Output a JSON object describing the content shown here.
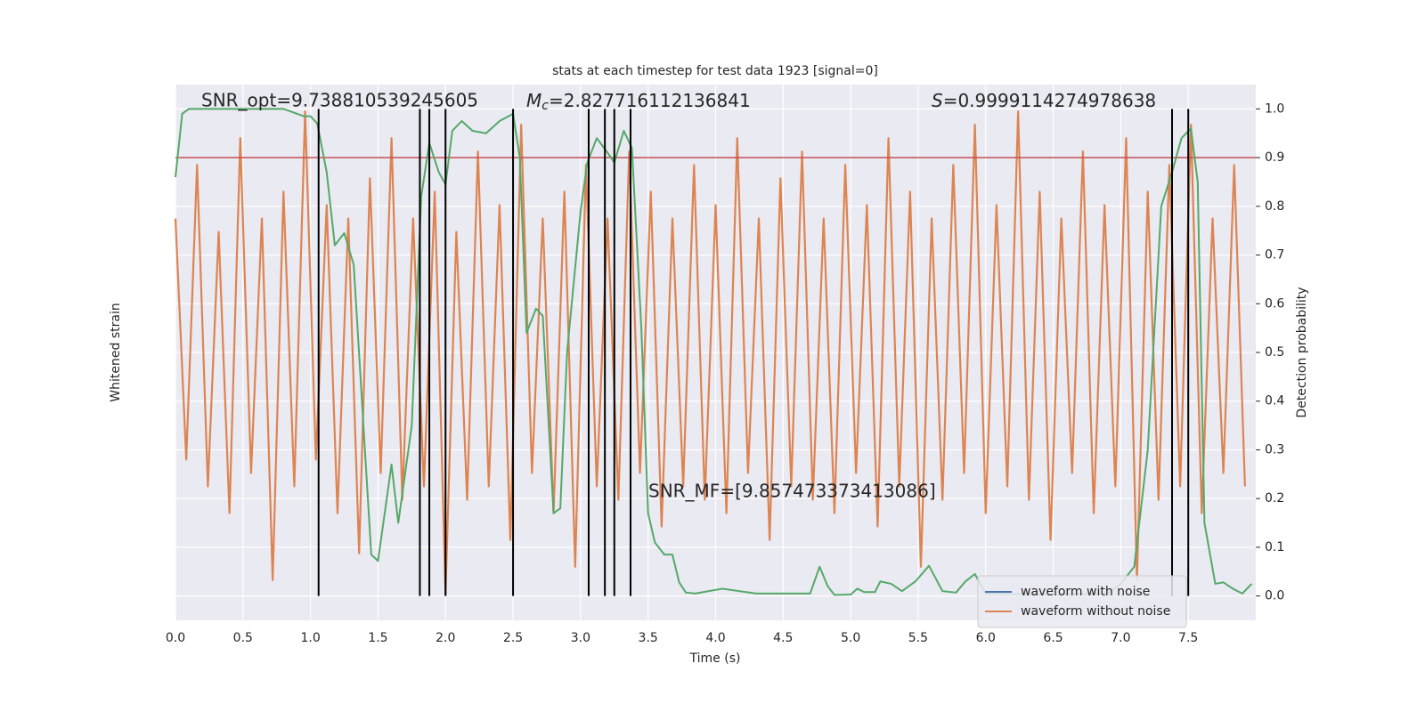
{
  "chart_data": {
    "type": "line",
    "title": "stats at each timestep for test data 1923 [signal=0]",
    "xlabel": "Time (s)",
    "ylabel": "Whitened strain",
    "y2label": "Detection probability",
    "xlim": [
      0,
      8.0
    ],
    "ylim": [
      -1,
      1
    ],
    "y2lim": [
      -0.05,
      1.05
    ],
    "xticks": [
      {
        "value": 0,
        "label": "0.0"
      },
      {
        "value": 0.5,
        "label": "0.5"
      },
      {
        "value": 1,
        "label": "1.0"
      },
      {
        "value": 1.5,
        "label": "1.5"
      },
      {
        "value": 2,
        "label": "2.0"
      },
      {
        "value": 2.5,
        "label": "2.5"
      },
      {
        "value": 3,
        "label": "3.0"
      },
      {
        "value": 3.5,
        "label": "3.5"
      },
      {
        "value": 4,
        "label": "4.0"
      },
      {
        "value": 4.5,
        "label": "4.5"
      },
      {
        "value": 5,
        "label": "5.0"
      },
      {
        "value": 5.5,
        "label": "5.5"
      },
      {
        "value": 6,
        "label": "6.0"
      },
      {
        "value": 6.5,
        "label": "6.5"
      },
      {
        "value": 7,
        "label": "7.0"
      },
      {
        "value": 7.5,
        "label": "7.5"
      }
    ],
    "y2ticks": [
      {
        "value": 0,
        "label": "0.0"
      },
      0.1,
      0.2,
      0.3,
      0.4,
      0.5,
      0.6,
      0.7,
      0.8,
      0.9,
      {
        "value": 1,
        "label": "1.0"
      }
    ],
    "grid": true,
    "annotations": [
      {
        "text": "SNR_opt=9.738810539245605"
      },
      {
        "symbol": "M",
        "subscript": "c",
        "text": "=2.827716112136841"
      },
      {
        "symbol": "S",
        "text": "=0.9999114274978638"
      },
      {
        "text": "SNR_MF=[9.857473373413086]"
      }
    ],
    "legend": {
      "loc": "lower right",
      "entries": [
        {
          "name": "waveform with noise",
          "color": "#4c72b0"
        },
        {
          "name": "waveform without noise",
          "color": "#dd8452"
        }
      ]
    },
    "hline": {
      "value": 0.9,
      "color": "#c44e52"
    },
    "vlines": {
      "color": "#000000",
      "values": [
        1.06,
        1.81,
        1.88,
        2.0,
        2.5,
        3.06,
        3.18,
        3.25,
        3.37,
        7.38,
        7.5
      ]
    },
    "series": [
      {
        "name": "waveform without noise",
        "color": "#dd8452",
        "x": [
          0,
          0.08,
          0.16,
          0.24,
          0.32,
          0.4,
          0.48,
          0.56,
          0.64,
          0.72,
          0.8,
          0.88,
          0.96,
          1.04,
          1.12,
          1.2,
          1.28,
          1.36,
          1.44,
          1.52,
          1.6,
          1.68,
          1.76,
          1.84,
          1.92,
          2,
          2.08,
          2.16,
          2.24,
          2.32,
          2.4,
          2.48,
          2.56,
          2.64,
          2.72,
          2.8,
          2.88,
          2.96,
          3.04,
          3.12,
          3.2,
          3.28,
          3.36,
          3.44,
          3.52,
          3.6,
          3.68,
          3.76,
          3.84,
          3.92,
          4,
          4.08,
          4.16,
          4.24,
          4.32,
          4.4,
          4.48,
          4.56,
          4.64,
          4.72,
          4.8,
          4.88,
          4.96,
          5.04,
          5.12,
          5.2,
          5.28,
          5.36,
          5.44,
          5.52,
          5.6,
          5.68,
          5.76,
          5.84,
          5.92,
          6,
          6.08,
          6.16,
          6.24,
          6.32,
          6.4,
          6.48,
          6.56,
          6.64,
          6.72,
          6.8,
          6.88,
          6.96,
          7.04,
          7.12,
          7.2,
          7.28,
          7.36,
          7.44,
          7.52,
          7.6,
          7.68,
          7.76,
          7.84,
          7.92
        ],
        "values": [
          0.5,
          -0.4,
          0.7,
          -0.5,
          0.45,
          -0.6,
          0.8,
          -0.45,
          0.5,
          -0.85,
          0.6,
          -0.5,
          0.9,
          -0.4,
          0.55,
          -0.6,
          0.5,
          -0.75,
          0.65,
          -0.45,
          0.8,
          -0.55,
          0.5,
          -0.5,
          0.6,
          -0.9,
          0.45,
          -0.55,
          0.75,
          -0.5,
          0.55,
          -0.7,
          0.85,
          -0.45,
          0.5,
          -0.6,
          0.6,
          -0.8,
          0.7,
          -0.5,
          0.5,
          -0.55,
          0.75,
          -0.45,
          0.6,
          -0.65,
          0.5,
          -0.5,
          0.7,
          -0.55,
          0.55,
          -0.6,
          0.8,
          -0.45,
          0.5,
          -0.7,
          0.65,
          -0.5,
          0.75,
          -0.55,
          0.5,
          -0.6,
          0.7,
          -0.45,
          0.55,
          -0.65,
          0.8,
          -0.5,
          0.6,
          -0.8,
          0.5,
          -0.55,
          0.7,
          -0.45,
          0.85,
          -0.6,
          0.55,
          -0.5,
          0.9,
          -0.55,
          0.6,
          -0.7,
          0.5,
          -0.45,
          0.75,
          -0.6,
          0.55,
          -0.5,
          0.8,
          -0.85,
          0.6,
          -0.55,
          0.7,
          -0.5,
          0.85,
          -0.6,
          0.5,
          -0.45,
          0.7,
          -0.5
        ]
      },
      {
        "color": "#55a868",
        "axis": "y2",
        "x": [
          0,
          0.05,
          0.1,
          0.5,
          0.8,
          0.95,
          1.0,
          1.05,
          1.12,
          1.18,
          1.25,
          1.32,
          1.45,
          1.5,
          1.6,
          1.65,
          1.75,
          1.82,
          1.88,
          1.95,
          2.0,
          2.05,
          2.12,
          2.2,
          2.3,
          2.4,
          2.5,
          2.55,
          2.6,
          2.67,
          2.72,
          2.8,
          2.85,
          2.9,
          3.0,
          3.05,
          3.12,
          3.2,
          3.25,
          3.32,
          3.38,
          3.45,
          3.5,
          3.55,
          3.62,
          3.68,
          3.73,
          3.78,
          3.85,
          3.95,
          4.05,
          4.3,
          4.6,
          4.7,
          4.77,
          4.83,
          4.88,
          5.0,
          5.05,
          5.1,
          5.18,
          5.22,
          5.3,
          5.38,
          5.48,
          5.58,
          5.68,
          5.78,
          5.85,
          5.92,
          6.0,
          6.5,
          6.9,
          7.0,
          7.1,
          7.2,
          7.3,
          7.38,
          7.45,
          7.52,
          7.57,
          7.62,
          7.7,
          7.76,
          7.83,
          7.9,
          7.97
        ],
        "values": [
          0.86,
          0.99,
          1.0,
          1.0,
          1.0,
          0.985,
          0.985,
          0.97,
          0.87,
          0.72,
          0.745,
          0.68,
          0.085,
          0.072,
          0.27,
          0.15,
          0.35,
          0.82,
          0.93,
          0.87,
          0.845,
          0.955,
          0.975,
          0.955,
          0.95,
          0.975,
          0.99,
          0.9,
          0.54,
          0.59,
          0.575,
          0.17,
          0.18,
          0.5,
          0.79,
          0.89,
          0.94,
          0.91,
          0.89,
          0.955,
          0.92,
          0.55,
          0.17,
          0.11,
          0.085,
          0.085,
          0.028,
          0.007,
          0.005,
          0.01,
          0.015,
          0.005,
          0.005,
          0.005,
          0.06,
          0.02,
          0.002,
          0.003,
          0.015,
          0.008,
          0.008,
          0.03,
          0.025,
          0.01,
          0.03,
          0.062,
          0.01,
          0.007,
          0.03,
          0.045,
          0.005,
          0.003,
          0.005,
          0.025,
          0.06,
          0.3,
          0.8,
          0.87,
          0.94,
          0.96,
          0.85,
          0.15,
          0.025,
          0.028,
          0.015,
          0.005,
          0.025
        ]
      }
    ]
  }
}
